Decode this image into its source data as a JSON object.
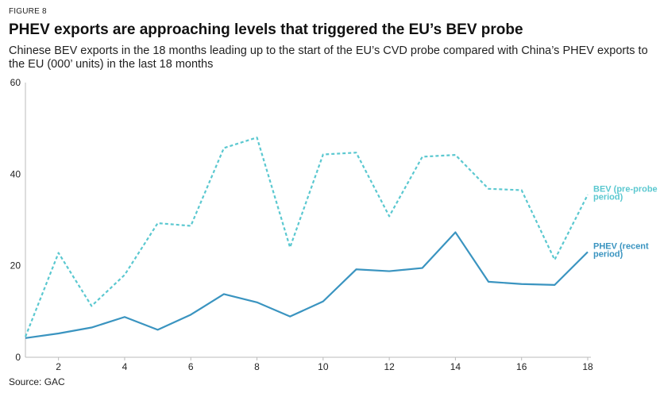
{
  "figure_label": "FIGURE 8",
  "source": "Source: GAC",
  "colors": {
    "bev": "#5bc8d0",
    "phev": "#3a94c0",
    "axis": "#bbbbbb",
    "text": "#222222"
  },
  "chart_data": {
    "type": "line",
    "title": "PHEV exports are approaching levels that triggered the EU’s BEV probe",
    "subtitle": "Chinese BEV exports in the 18 months leading up to the start of the EU’s CVD probe compared with China’s PHEV exports to the EU (000’ units) in the last 18 months",
    "xlabel": "",
    "ylabel": "",
    "xlim": [
      1,
      18
    ],
    "ylim": [
      0,
      60
    ],
    "x_ticks": [
      2,
      4,
      6,
      8,
      10,
      12,
      14,
      16,
      18
    ],
    "y_ticks": [
      0,
      20,
      40,
      60
    ],
    "x": [
      1,
      2,
      3,
      4,
      5,
      6,
      7,
      8,
      9,
      10,
      11,
      12,
      13,
      14,
      15,
      16,
      17,
      18
    ],
    "series": [
      {
        "name": "BEV (pre-probe period)",
        "label_lines": [
          "BEV (pre-probe",
          "period)"
        ],
        "style": "dashed",
        "values": [
          4.5,
          22.8,
          11.2,
          18,
          29.3,
          28.7,
          45.7,
          48,
          24,
          44.3,
          44.7,
          30.8,
          43.8,
          44.2,
          36.8,
          36.5,
          21.3,
          35.5
        ]
      },
      {
        "name": "PHEV (recent period)",
        "label_lines": [
          "PHEV (recent",
          "period)"
        ],
        "style": "solid",
        "values": [
          4.2,
          5.2,
          6.5,
          8.8,
          6.0,
          9.3,
          13.8,
          12.0,
          8.9,
          12.2,
          19.2,
          18.8,
          19.5,
          27.3,
          16.5,
          16.0,
          15.8,
          23.0
        ]
      }
    ]
  }
}
